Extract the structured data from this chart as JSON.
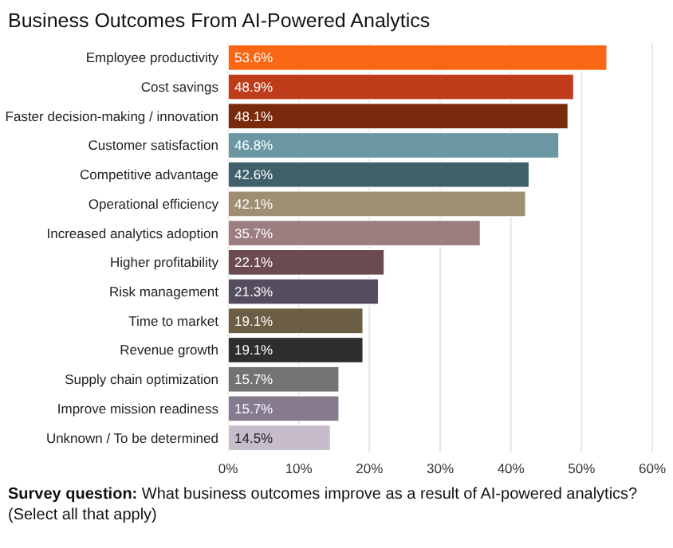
{
  "chart_data": {
    "type": "bar",
    "orientation": "horizontal",
    "title": "Business Outcomes From AI-Powered Analytics",
    "categories": [
      "Employee productivity",
      "Cost savings",
      "Faster decision-making / innovation",
      "Customer satisfaction",
      "Competitive advantage",
      "Operational efficiency",
      "Increased analytics adoption",
      "Higher profitability",
      "Risk management",
      "Time to market",
      "Revenue growth",
      "Supply chain optimization",
      "Improve mission readiness",
      "Unknown / To be determined"
    ],
    "values": [
      53.6,
      48.9,
      48.1,
      46.8,
      42.6,
      42.1,
      35.7,
      22.1,
      21.3,
      19.1,
      19.1,
      15.7,
      15.7,
      14.5
    ],
    "colors": [
      "#f96714",
      "#bf3c1a",
      "#7a2a0c",
      "#6b97a3",
      "#3f5f6a",
      "#9e8e72",
      "#9c7d80",
      "#6b4a50",
      "#544d5e",
      "#6b5e45",
      "#2e2e2e",
      "#737373",
      "#857a8e",
      "#c6bccb"
    ],
    "value_labels": [
      "53.6%",
      "48.9%",
      "48.1%",
      "46.8%",
      "42.6%",
      "42.1%",
      "35.7%",
      "22.1%",
      "21.3%",
      "19.1%",
      "19.1%",
      "15.7%",
      "15.7%",
      "14.5%"
    ],
    "xlim": [
      0,
      60
    ],
    "xticks": [
      {
        "value": 0,
        "label": "0%"
      },
      {
        "value": 10,
        "label": "10%"
      },
      {
        "value": 20,
        "label": "20%"
      },
      {
        "value": 30,
        "label": "30%"
      },
      {
        "value": 40,
        "label": "40%"
      },
      {
        "value": 50,
        "label": "50%"
      },
      {
        "value": 60,
        "label": "60%"
      }
    ],
    "grid": "x",
    "annotations": [
      "Survey question: What business outcomes improve as a result of AI-powered analytics? (Select all that apply)"
    ]
  }
}
